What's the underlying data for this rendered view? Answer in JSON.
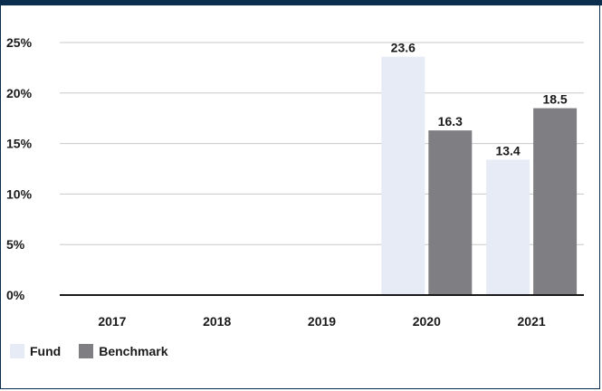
{
  "chart_data": {
    "type": "bar",
    "categories": [
      "2017",
      "2018",
      "2019",
      "2020",
      "2021"
    ],
    "series": [
      {
        "name": "Fund",
        "values": [
          null,
          null,
          null,
          23.6,
          13.4
        ],
        "color": "#e6ebf5"
      },
      {
        "name": "Benchmark",
        "values": [
          null,
          null,
          null,
          16.3,
          18.5
        ],
        "color": "#7f7f83"
      }
    ],
    "data_labels": [
      [
        "",
        "",
        "",
        "23.6",
        "13.4"
      ],
      [
        "",
        "",
        "",
        "16.3",
        "18.5"
      ]
    ],
    "y_ticks": [
      0,
      5,
      10,
      15,
      20,
      25
    ],
    "y_tick_labels": [
      "0%",
      "5%",
      "10%",
      "15%",
      "20%",
      "25%"
    ],
    "ylim": [
      0,
      25
    ],
    "grid": true,
    "legend_position": "bottom-left",
    "colors": {
      "frame": "#0b2d4e",
      "grid": "#c8c8c8",
      "axis": "#1a1a1a"
    }
  }
}
